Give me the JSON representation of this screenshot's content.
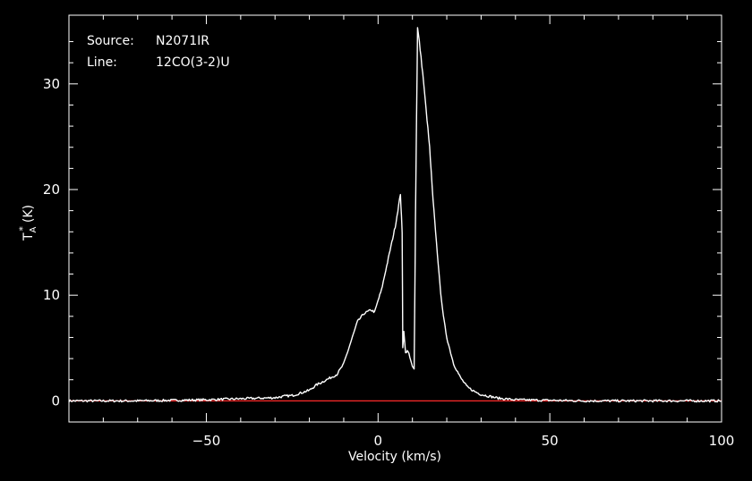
{
  "chart_data": {
    "type": "line",
    "title": "",
    "xlabel": "Velocity (km/s)",
    "ylabel": {
      "main": "T",
      "subscript": "A",
      "superscript": "*",
      "unit": "(K)"
    },
    "xlim": [
      -90,
      100
    ],
    "ylim": [
      -2,
      36.5
    ],
    "x_ticks": [
      -50,
      0,
      50,
      100
    ],
    "y_ticks": [
      0,
      10,
      20,
      30
    ],
    "x_tick_labels": [
      "−50",
      "0",
      "50",
      "100"
    ],
    "y_tick_labels": [
      "0",
      "10",
      "20",
      "30"
    ],
    "grid": false,
    "annotations": {
      "source_label": "Source:",
      "source_value": "N2071IR",
      "line_label": "Line:",
      "line_value": "12CO(3-2)U"
    },
    "baseline": {
      "y": 0,
      "color": "#ff2a2a"
    },
    "colors": {
      "background": "#000000",
      "foreground": "#ffffff",
      "baseline": "#ff2a2a"
    },
    "series": [
      {
        "color": "#ffffff",
        "x": [
          -90,
          -80,
          -70,
          -60,
          -50,
          -40,
          -35,
          -30,
          -27,
          -25,
          -22,
          -20,
          -18,
          -15,
          -12,
          -10,
          -8,
          -6,
          -4,
          -2,
          -1,
          0,
          1,
          2,
          3,
          4,
          5,
          6,
          6.5,
          6.8,
          7,
          7.2,
          7.5,
          8,
          8.5,
          9,
          10,
          10.5,
          10.8,
          11,
          11.2,
          11.5,
          12,
          13,
          14,
          15,
          16,
          17,
          18,
          19,
          20,
          22,
          24,
          26,
          28,
          30,
          35,
          40,
          50,
          60,
          70,
          80,
          90,
          100
        ],
        "y": [
          0,
          0,
          0,
          0.05,
          0.1,
          0.2,
          0.25,
          0.3,
          0.45,
          0.5,
          0.8,
          1.0,
          1.5,
          2.0,
          2.5,
          3.5,
          5.5,
          7.5,
          8.3,
          8.6,
          8.4,
          9.5,
          10.5,
          12.0,
          13.5,
          15.0,
          16.5,
          18.5,
          19.6,
          17.5,
          16.0,
          5.0,
          6.5,
          4.5,
          4.8,
          4.4,
          3.2,
          3.0,
          14.0,
          20.5,
          27.0,
          35.3,
          34.0,
          31.0,
          27.5,
          24.0,
          19.0,
          15.0,
          11.0,
          8.0,
          6.0,
          3.5,
          2.2,
          1.3,
          0.9,
          0.6,
          0.25,
          0.1,
          0.05,
          0,
          0,
          0,
          0,
          0
        ]
      }
    ]
  }
}
